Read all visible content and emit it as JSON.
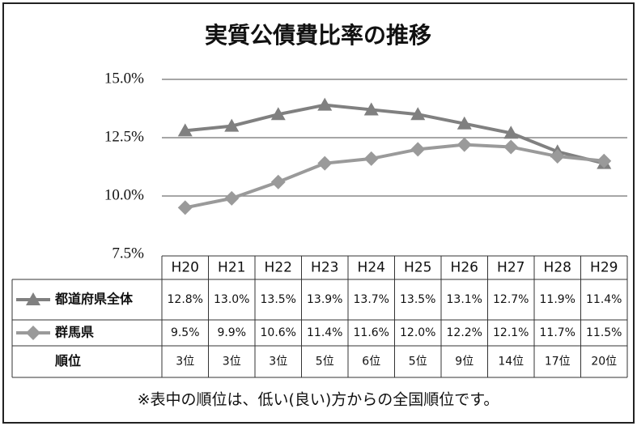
{
  "chart_data": {
    "type": "line",
    "title": "実質公債費比率の推移",
    "categories": [
      "H20",
      "H21",
      "H22",
      "H23",
      "H24",
      "H25",
      "H26",
      "H27",
      "H28",
      "H29"
    ],
    "series": [
      {
        "name": "都道府県全体",
        "color": "#808080",
        "marker": "triangle",
        "values": [
          12.8,
          13.0,
          13.5,
          13.9,
          13.7,
          13.5,
          13.1,
          12.7,
          11.9,
          11.4
        ],
        "value_labels": [
          "12.8%",
          "13.0%",
          "13.5%",
          "13.9%",
          "13.7%",
          "13.5%",
          "13.1%",
          "12.7%",
          "11.9%",
          "11.4%"
        ]
      },
      {
        "name": "群馬県",
        "color": "#9a9a9a",
        "marker": "diamond",
        "values": [
          9.5,
          9.9,
          10.6,
          11.4,
          11.6,
          12.0,
          12.2,
          12.1,
          11.7,
          11.5
        ],
        "value_labels": [
          "9.5%",
          "9.9%",
          "10.6%",
          "11.4%",
          "11.6%",
          "12.0%",
          "12.2%",
          "12.1%",
          "11.7%",
          "11.5%"
        ]
      }
    ],
    "ranks": {
      "name": "順位",
      "labels": [
        "3位",
        "3位",
        "3位",
        "5位",
        "6位",
        "5位",
        "9位",
        "14位",
        "17位",
        "20位"
      ]
    },
    "ylim": [
      7.5,
      15.0
    ],
    "yticks": [
      {
        "value": 7.5,
        "label": "7.5%"
      },
      {
        "value": 10.0,
        "label": "10.0%"
      },
      {
        "value": 12.5,
        "label": "12.5%"
      },
      {
        "value": 15.0,
        "label": "15.0%"
      }
    ],
    "grid": true,
    "note": "※表中の順位は、低い(良い)方からの全国順位です。"
  }
}
